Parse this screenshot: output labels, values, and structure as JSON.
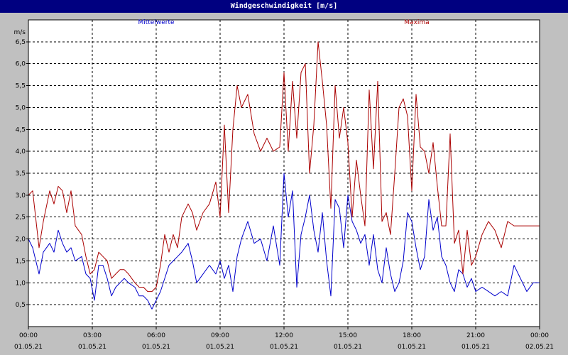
{
  "window": {
    "title": "Windgeschwindigkeit [m/s]"
  },
  "colors": {
    "background": "#c0c0c0",
    "plot_background": "#ffffff",
    "title_bar": "#000080",
    "mittelwerte": "#0000cc",
    "maxima": "#aa0000"
  },
  "chart_data": {
    "type": "line",
    "title": "Windgeschwindigkeit [m/s]",
    "ylabel": "m/s",
    "xlabel": "",
    "ylim": [
      0,
      7
    ],
    "xlim": [
      0,
      24
    ],
    "grid": true,
    "legend_position": "top",
    "y_ticks": [
      "0,5",
      "1,0",
      "1,5",
      "2,0",
      "2,5",
      "3,0",
      "3,5",
      "4,0",
      "4,5",
      "5,0",
      "5,5",
      "6,0",
      "6,5"
    ],
    "x_ticks": [
      {
        "time": "00:00",
        "date": "01.05.21"
      },
      {
        "time": "03:00",
        "date": "01.05.21"
      },
      {
        "time": "06:00",
        "date": "01.05.21"
      },
      {
        "time": "09:00",
        "date": "01.05.21"
      },
      {
        "time": "12:00",
        "date": "01.05.21"
      },
      {
        "time": "15:00",
        "date": "01.05.21"
      },
      {
        "time": "18:00",
        "date": "01.05.21"
      },
      {
        "time": "21:00",
        "date": "01.05.21"
      },
      {
        "time": "00:00",
        "date": "02.05.21"
      }
    ],
    "series": [
      {
        "name": "Mittelwerte",
        "color": "#0000cc",
        "x": [
          0,
          0.2,
          0.5,
          0.7,
          1.0,
          1.2,
          1.4,
          1.6,
          1.8,
          2.0,
          2.2,
          2.5,
          2.7,
          2.9,
          3.1,
          3.3,
          3.5,
          3.7,
          3.9,
          4.1,
          4.3,
          4.5,
          4.7,
          5.0,
          5.2,
          5.4,
          5.6,
          5.8,
          6.0,
          6.2,
          6.4,
          6.6,
          6.8,
          7.0,
          7.2,
          7.5,
          7.7,
          7.9,
          8.2,
          8.5,
          8.8,
          9.0,
          9.2,
          9.4,
          9.6,
          9.8,
          10.0,
          10.3,
          10.6,
          10.9,
          11.2,
          11.5,
          11.8,
          12.0,
          12.2,
          12.4,
          12.6,
          12.8,
          13.0,
          13.2,
          13.4,
          13.6,
          13.8,
          14.0,
          14.2,
          14.4,
          14.6,
          14.8,
          15.0,
          15.2,
          15.4,
          15.6,
          15.8,
          16.0,
          16.2,
          16.4,
          16.6,
          16.8,
          17.0,
          17.2,
          17.4,
          17.6,
          17.8,
          18.0,
          18.2,
          18.4,
          18.6,
          18.8,
          19.0,
          19.2,
          19.4,
          19.6,
          19.8,
          20.0,
          20.2,
          20.4,
          20.6,
          20.8,
          21.0,
          21.3,
          21.6,
          21.9,
          22.2,
          22.5,
          22.8,
          23.1,
          23.4,
          23.7,
          24.0
        ],
        "values": [
          2.0,
          1.8,
          1.2,
          1.7,
          1.9,
          1.7,
          2.2,
          1.9,
          1.7,
          1.8,
          1.5,
          1.6,
          1.2,
          1.1,
          0.6,
          1.4,
          1.4,
          1.1,
          0.7,
          0.9,
          1.0,
          1.1,
          1.0,
          0.9,
          0.7,
          0.7,
          0.6,
          0.4,
          0.6,
          0.8,
          1.1,
          1.4,
          1.5,
          1.6,
          1.7,
          1.9,
          1.5,
          1.0,
          1.2,
          1.4,
          1.2,
          1.5,
          1.1,
          1.4,
          0.8,
          1.6,
          2.0,
          2.4,
          1.9,
          2.0,
          1.5,
          2.3,
          1.4,
          3.5,
          2.5,
          3.1,
          0.9,
          2.1,
          2.5,
          3.0,
          2.2,
          1.7,
          2.6,
          1.5,
          0.7,
          2.9,
          2.7,
          1.8,
          3.0,
          2.4,
          2.2,
          1.9,
          2.1,
          1.4,
          2.1,
          1.3,
          1.0,
          1.8,
          1.2,
          0.8,
          1.0,
          1.5,
          2.6,
          2.4,
          1.8,
          1.3,
          1.6,
          2.9,
          2.2,
          2.5,
          1.6,
          1.4,
          1.0,
          0.8,
          1.3,
          1.2,
          0.9,
          1.1,
          0.8,
          0.9,
          0.8,
          0.7,
          0.8,
          0.7,
          1.4,
          1.1,
          0.8,
          1.0,
          1.0
        ]
      },
      {
        "name": "Maxima",
        "color": "#aa0000",
        "x": [
          0,
          0.2,
          0.5,
          0.7,
          1.0,
          1.2,
          1.4,
          1.6,
          1.8,
          2.0,
          2.2,
          2.5,
          2.7,
          2.9,
          3.1,
          3.3,
          3.5,
          3.7,
          3.9,
          4.1,
          4.3,
          4.5,
          4.7,
          5.0,
          5.2,
          5.4,
          5.6,
          5.8,
          6.0,
          6.2,
          6.4,
          6.6,
          6.8,
          7.0,
          7.2,
          7.5,
          7.7,
          7.9,
          8.2,
          8.5,
          8.8,
          9.0,
          9.2,
          9.4,
          9.6,
          9.8,
          10.0,
          10.3,
          10.6,
          10.9,
          11.2,
          11.5,
          11.8,
          12.0,
          12.2,
          12.4,
          12.6,
          12.8,
          13.0,
          13.2,
          13.4,
          13.6,
          13.8,
          14.0,
          14.2,
          14.4,
          14.6,
          14.8,
          15.0,
          15.2,
          15.4,
          15.6,
          15.8,
          16.0,
          16.2,
          16.4,
          16.6,
          16.8,
          17.0,
          17.2,
          17.4,
          17.6,
          17.8,
          18.0,
          18.2,
          18.4,
          18.6,
          18.8,
          19.0,
          19.2,
          19.4,
          19.6,
          19.8,
          20.0,
          20.2,
          20.4,
          20.6,
          20.8,
          21.0,
          21.3,
          21.6,
          21.9,
          22.2,
          22.5,
          22.8,
          23.1,
          23.4,
          23.7,
          24.0
        ],
        "values": [
          3.0,
          3.1,
          1.8,
          2.4,
          3.1,
          2.8,
          3.2,
          3.1,
          2.6,
          3.1,
          2.3,
          2.1,
          1.6,
          1.2,
          1.3,
          1.7,
          1.6,
          1.5,
          1.1,
          1.2,
          1.3,
          1.3,
          1.2,
          1.0,
          0.9,
          0.9,
          0.8,
          0.8,
          0.9,
          1.4,
          2.1,
          1.7,
          2.1,
          1.8,
          2.5,
          2.8,
          2.6,
          2.2,
          2.6,
          2.8,
          3.3,
          2.5,
          4.6,
          2.6,
          4.5,
          5.5,
          5.0,
          5.3,
          4.4,
          4.0,
          4.3,
          4.0,
          4.1,
          5.8,
          4.0,
          5.6,
          4.3,
          5.8,
          6.0,
          3.5,
          4.6,
          6.5,
          5.6,
          4.6,
          2.7,
          5.5,
          4.3,
          5.0,
          4.2,
          2.5,
          3.8,
          3.0,
          2.3,
          5.4,
          3.6,
          5.6,
          2.4,
          2.6,
          2.1,
          3.5,
          5.0,
          5.2,
          4.8,
          3.1,
          5.3,
          4.1,
          4.0,
          3.5,
          4.2,
          3.2,
          2.3,
          2.3,
          4.4,
          1.9,
          2.2,
          1.2,
          2.2,
          1.4,
          1.6,
          2.1,
          2.4,
          2.2,
          1.8,
          2.4,
          2.3,
          2.3,
          2.3,
          2.3,
          2.3
        ]
      }
    ]
  }
}
